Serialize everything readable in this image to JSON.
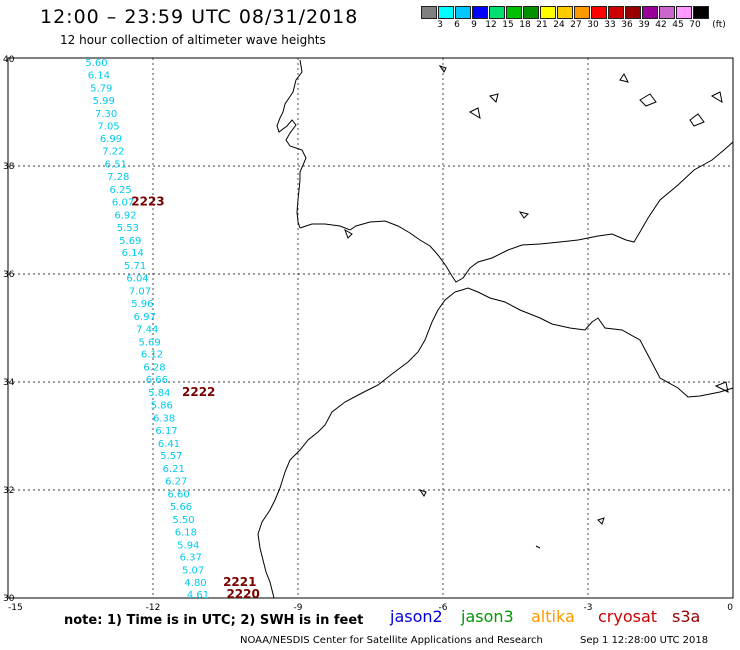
{
  "header": {
    "title": "12:00 – 23:59 UTC 08/31/2018",
    "subtitle": "12 hour collection of altimeter wave heights"
  },
  "color_scale": {
    "unit": "(ft)",
    "labels": [
      "3",
      "6",
      "9",
      "12",
      "15",
      "18",
      "21",
      "24",
      "27",
      "30",
      "33",
      "36",
      "39",
      "42",
      "45",
      "70"
    ],
    "colors": [
      "#808080",
      "#00ffff",
      "#00c8ff",
      "#0000ff",
      "#00e070",
      "#00c000",
      "#009000",
      "#ffff00",
      "#ffcc00",
      "#ff9900",
      "#ff0000",
      "#cc0000",
      "#990000",
      "#990099",
      "#cc66cc",
      "#ff99ff",
      "#000000"
    ]
  },
  "map": {
    "lat_labels": [
      "40",
      "38",
      "36",
      "34",
      "32",
      "30"
    ],
    "lon_labels": [
      "-15",
      "-12",
      "-9",
      "-6",
      "-3",
      "0"
    ],
    "track_color": "#00ccee",
    "pass_color": "#7a0000",
    "readings": [
      {
        "lon": -13.4,
        "lat": 39.85,
        "value": "5.60"
      },
      {
        "lon": -13.35,
        "lat": 39.62,
        "value": "6.14"
      },
      {
        "lon": -13.3,
        "lat": 39.38,
        "value": "5.79"
      },
      {
        "lon": -13.25,
        "lat": 39.15,
        "value": "5.99"
      },
      {
        "lon": -13.2,
        "lat": 38.91,
        "value": "7.30"
      },
      {
        "lon": -13.15,
        "lat": 38.68,
        "value": "7.05"
      },
      {
        "lon": -13.1,
        "lat": 38.44,
        "value": "6.99"
      },
      {
        "lon": -13.05,
        "lat": 38.21,
        "value": "7.22"
      },
      {
        "lon": -13.0,
        "lat": 37.97,
        "value": "6.51"
      },
      {
        "lon": -12.95,
        "lat": 37.74,
        "value": "7.28"
      },
      {
        "lon": -12.9,
        "lat": 37.5,
        "value": "6.25"
      },
      {
        "lon": -12.85,
        "lat": 37.27,
        "value": "6.07"
      },
      {
        "lon": -12.8,
        "lat": 37.03,
        "value": "6.92"
      },
      {
        "lon": -12.75,
        "lat": 36.8,
        "value": "5.53"
      },
      {
        "lon": -12.7,
        "lat": 36.56,
        "value": "5.69"
      },
      {
        "lon": -12.65,
        "lat": 36.33,
        "value": "6.14"
      },
      {
        "lon": -12.6,
        "lat": 36.09,
        "value": "5.71"
      },
      {
        "lon": -12.55,
        "lat": 35.86,
        "value": "6.04"
      },
      {
        "lon": -12.5,
        "lat": 35.62,
        "value": "7.07"
      },
      {
        "lon": -12.45,
        "lat": 35.39,
        "value": "5.96"
      },
      {
        "lon": -12.4,
        "lat": 35.15,
        "value": "6.97"
      },
      {
        "lon": -12.35,
        "lat": 34.92,
        "value": "7.44"
      },
      {
        "lon": -12.3,
        "lat": 34.68,
        "value": "5.69"
      },
      {
        "lon": -12.25,
        "lat": 34.45,
        "value": "6.12"
      },
      {
        "lon": -12.2,
        "lat": 34.21,
        "value": "6.28"
      },
      {
        "lon": -12.15,
        "lat": 33.98,
        "value": "6.66"
      },
      {
        "lon": -12.1,
        "lat": 33.74,
        "value": "5.84"
      },
      {
        "lon": -12.05,
        "lat": 33.51,
        "value": "5.86"
      },
      {
        "lon": -12.0,
        "lat": 33.27,
        "value": "6.38"
      },
      {
        "lon": -11.95,
        "lat": 33.04,
        "value": "6.17"
      },
      {
        "lon": -11.9,
        "lat": 32.8,
        "value": "6.41"
      },
      {
        "lon": -11.85,
        "lat": 32.57,
        "value": "5.57"
      },
      {
        "lon": -11.8,
        "lat": 32.33,
        "value": "6.21"
      },
      {
        "lon": -11.75,
        "lat": 32.1,
        "value": "6.27"
      },
      {
        "lon": -11.7,
        "lat": 31.86,
        "value": "6.60"
      },
      {
        "lon": -11.65,
        "lat": 31.63,
        "value": "5.66"
      },
      {
        "lon": -11.6,
        "lat": 31.39,
        "value": "5.50"
      },
      {
        "lon": -11.55,
        "lat": 31.16,
        "value": "6.18"
      },
      {
        "lon": -11.5,
        "lat": 30.92,
        "value": "5.94"
      },
      {
        "lon": -11.45,
        "lat": 30.69,
        "value": "6.37"
      },
      {
        "lon": -11.4,
        "lat": 30.45,
        "value": "5.07"
      },
      {
        "lon": -11.35,
        "lat": 30.22,
        "value": "4.80"
      },
      {
        "lon": -11.3,
        "lat": 30.0,
        "value": "4.61"
      }
    ],
    "pass_labels": [
      {
        "lon": -12.45,
        "lat": 37.27,
        "text": "2223"
      },
      {
        "lon": -11.4,
        "lat": 33.74,
        "text": "2222"
      },
      {
        "lon": -10.55,
        "lat": 30.22,
        "text": "2221"
      },
      {
        "lon": -10.48,
        "lat": 30.0,
        "text": "2220"
      }
    ]
  },
  "note": "note:  1) Time is in UTC;  2) SWH is in feet",
  "legend": [
    {
      "label": "jason2",
      "color": "#0000dd"
    },
    {
      "label": "jason3",
      "color": "#009900"
    },
    {
      "label": "altika",
      "color": "#ff9900"
    },
    {
      "label": "cryosat",
      "color": "#cc0000"
    },
    {
      "label": "s3a",
      "color": "#990000"
    }
  ],
  "footer": {
    "credit": "NOAA/NESDIS Center for Satellite Applications and Research",
    "time": "Sep  1 12:28:00 UTC 2018"
  }
}
